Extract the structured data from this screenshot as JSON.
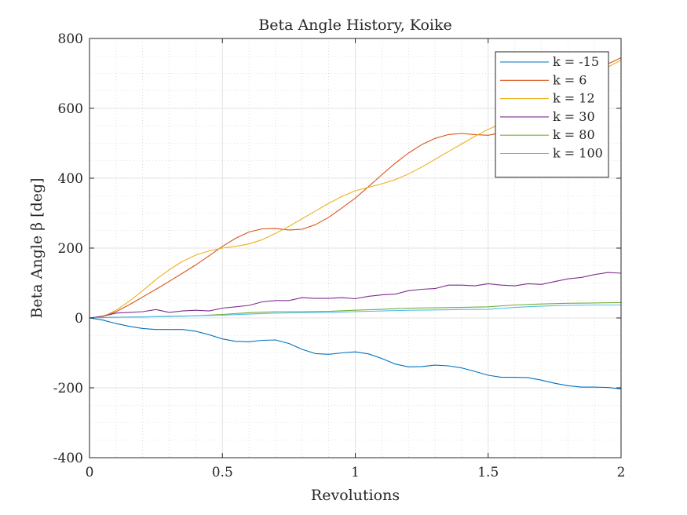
{
  "chart_data": {
    "type": "line",
    "title": "Beta Angle History, Koike",
    "xlabel": "Revolutions",
    "ylabel": "Beta Angle β [deg]",
    "xlim": [
      0,
      2
    ],
    "ylim": [
      -400,
      800
    ],
    "xticks": [
      0,
      0.5,
      1,
      1.5,
      2
    ],
    "xtick_labels": [
      "0",
      "0.5",
      "1",
      "1.5",
      "2"
    ],
    "yticks": [
      -400,
      -200,
      0,
      200,
      400,
      600,
      800
    ],
    "ytick_labels": [
      "-400",
      "-200",
      "0",
      "200",
      "400",
      "600",
      "800"
    ],
    "grid": true,
    "minor_grid": true,
    "legend_position": "top-right",
    "series": [
      {
        "name": "k = -15",
        "color": "#0072BD",
        "x": [
          0,
          0.05,
          0.1,
          0.15,
          0.2,
          0.25,
          0.3,
          0.35,
          0.4,
          0.45,
          0.5,
          0.55,
          0.6,
          0.65,
          0.7,
          0.75,
          0.8,
          0.85,
          0.9,
          0.95,
          1,
          1.05,
          1.1,
          1.15,
          1.2,
          1.25,
          1.3,
          1.35,
          1.4,
          1.45,
          1.5,
          1.55,
          1.6,
          1.65,
          1.7,
          1.75,
          1.8,
          1.85,
          1.9,
          1.95,
          2
        ],
        "y": [
          0,
          -6,
          -16,
          -24,
          -30,
          -33,
          -33,
          -33,
          -38,
          -48,
          -60,
          -67,
          -68,
          -64,
          -63,
          -73,
          -90,
          -102,
          -104,
          -100,
          -97,
          -103,
          -116,
          -132,
          -140,
          -139,
          -135,
          -137,
          -143,
          -153,
          -164,
          -170,
          -170,
          -171,
          -178,
          -187,
          -194,
          -198,
          -198,
          -199,
          -203
        ]
      },
      {
        "name": "k = 6",
        "color": "#D95319",
        "x": [
          0,
          0.05,
          0.1,
          0.15,
          0.2,
          0.25,
          0.3,
          0.35,
          0.4,
          0.45,
          0.5,
          0.55,
          0.6,
          0.65,
          0.7,
          0.75,
          0.8,
          0.85,
          0.9,
          0.95,
          1,
          1.05,
          1.1,
          1.15,
          1.2,
          1.25,
          1.3,
          1.35,
          1.4,
          1.45,
          1.5,
          1.55,
          1.6,
          1.65,
          1.7,
          1.75,
          1.8,
          1.85,
          1.9,
          1.95,
          2
        ],
        "y": [
          0,
          4,
          18,
          38,
          60,
          82,
          105,
          128,
          152,
          178,
          205,
          228,
          246,
          255,
          256,
          252,
          254,
          267,
          288,
          315,
          343,
          376,
          410,
          443,
          472,
          496,
          514,
          525,
          528,
          525,
          523,
          530,
          548,
          574,
          604,
          634,
          662,
          687,
          708,
          727,
          745
        ]
      },
      {
        "name": "k = 12",
        "color": "#EDB120",
        "x": [
          0,
          0.05,
          0.1,
          0.15,
          0.2,
          0.25,
          0.3,
          0.35,
          0.4,
          0.45,
          0.5,
          0.55,
          0.6,
          0.65,
          0.7,
          0.75,
          0.8,
          0.85,
          0.9,
          0.95,
          1,
          1.05,
          1.1,
          1.15,
          1.2,
          1.25,
          1.3,
          1.35,
          1.4,
          1.45,
          1.5,
          1.55,
          1.6,
          1.65,
          1.7,
          1.75,
          1.8,
          1.85,
          1.9,
          1.95,
          2
        ],
        "y": [
          0,
          4,
          22,
          48,
          78,
          110,
          138,
          162,
          180,
          192,
          200,
          205,
          212,
          224,
          242,
          262,
          284,
          306,
          328,
          348,
          364,
          374,
          384,
          396,
          412,
          432,
          454,
          476,
          498,
          520,
          540,
          556,
          571,
          586,
          604,
          624,
          648,
          672,
          697,
          718,
          738
        ]
      },
      {
        "name": "k = 30",
        "color": "#7E2F8E",
        "x": [
          0,
          0.05,
          0.1,
          0.15,
          0.2,
          0.25,
          0.3,
          0.35,
          0.4,
          0.45,
          0.5,
          0.55,
          0.6,
          0.65,
          0.7,
          0.75,
          0.8,
          0.85,
          0.9,
          0.95,
          1,
          1.05,
          1.1,
          1.15,
          1.2,
          1.25,
          1.3,
          1.35,
          1.4,
          1.45,
          1.5,
          1.55,
          1.6,
          1.65,
          1.7,
          1.75,
          1.8,
          1.85,
          1.9,
          1.95,
          2
        ],
        "y": [
          0,
          5,
          14,
          16,
          18,
          24,
          16,
          20,
          22,
          20,
          28,
          32,
          36,
          46,
          50,
          50,
          58,
          56,
          56,
          58,
          55,
          62,
          66,
          68,
          78,
          82,
          84,
          94,
          94,
          92,
          98,
          94,
          92,
          98,
          96,
          104,
          112,
          116,
          124,
          130,
          128
        ]
      },
      {
        "name": "k = 80",
        "color": "#77AC30",
        "x": [
          0,
          0.1,
          0.2,
          0.3,
          0.4,
          0.5,
          0.6,
          0.7,
          0.8,
          0.9,
          1,
          1.1,
          1.2,
          1.3,
          1.4,
          1.5,
          1.6,
          1.7,
          1.8,
          1.9,
          2
        ],
        "y": [
          0,
          2,
          3,
          5,
          6,
          10,
          15,
          18,
          18,
          19,
          22,
          25,
          28,
          29,
          30,
          32,
          37,
          40,
          42,
          43,
          44
        ]
      },
      {
        "name": "k = 100",
        "color": "#4DBEEE",
        "x": [
          0,
          0.1,
          0.2,
          0.3,
          0.4,
          0.5,
          0.6,
          0.7,
          0.8,
          0.9,
          1,
          1.1,
          1.2,
          1.3,
          1.4,
          1.5,
          1.6,
          1.7,
          1.8,
          1.9,
          2
        ],
        "y": [
          0,
          2,
          3,
          4,
          6,
          8,
          11,
          14,
          15,
          16,
          18,
          20,
          22,
          23,
          24,
          25,
          30,
          34,
          36,
          37,
          37
        ]
      }
    ]
  }
}
